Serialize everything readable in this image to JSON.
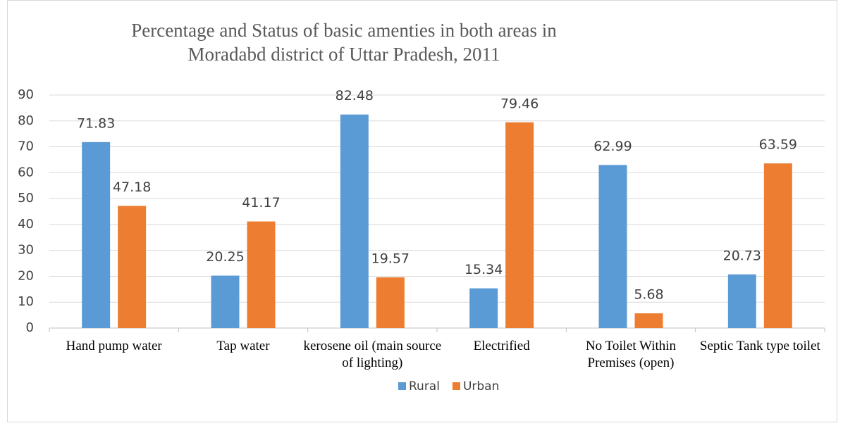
{
  "chart_data": {
    "type": "bar",
    "title": "Percentage and Status of basic amenties in both areas in Moradabd district of Uttar Pradesh, 2011",
    "categories": [
      "Hand pump water",
      "Tap water",
      "kerosene oil (main source of lighting)",
      "Electrified",
      "No Toilet Within Premises (open)",
      "Septic Tank type toilet"
    ],
    "series": [
      {
        "name": "Rural",
        "color": "#5b9bd5",
        "values": [
          71.83,
          20.25,
          82.48,
          15.34,
          62.99,
          20.73
        ]
      },
      {
        "name": "Urban",
        "color": "#ed7d31",
        "values": [
          47.18,
          41.17,
          19.57,
          79.46,
          5.68,
          63.59
        ]
      }
    ],
    "ylim": [
      0,
      90
    ],
    "yticks": [
      0,
      10,
      20,
      30,
      40,
      50,
      60,
      70,
      80,
      90
    ],
    "grid": true,
    "legend": "bottom"
  }
}
